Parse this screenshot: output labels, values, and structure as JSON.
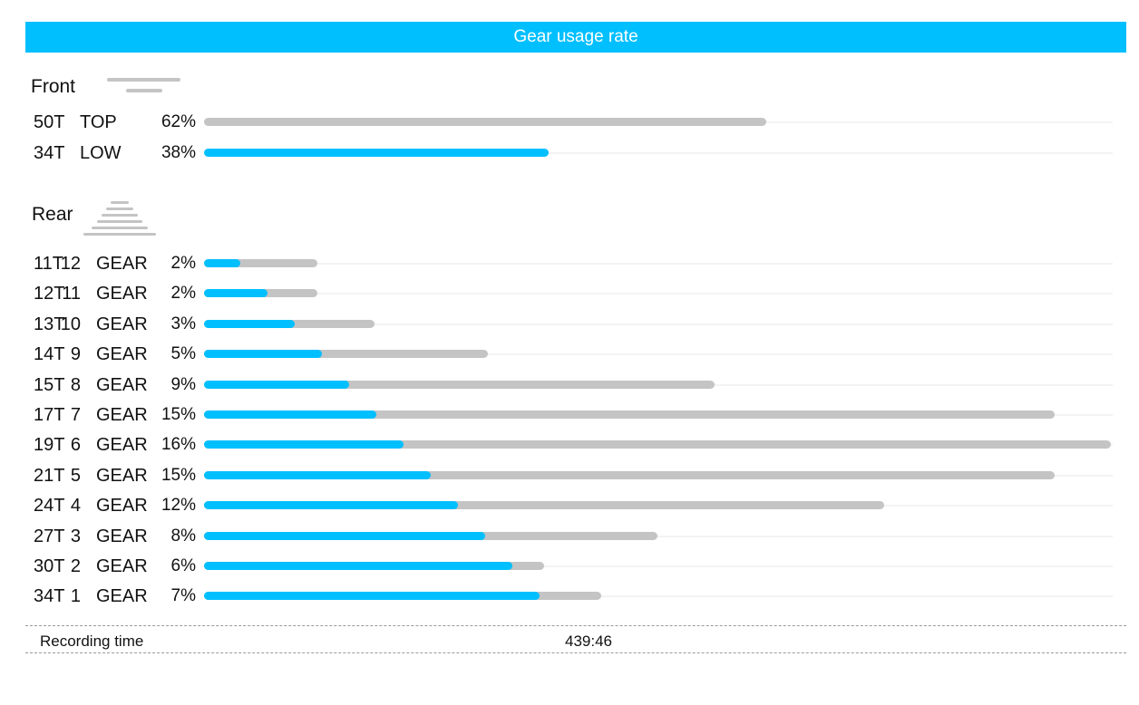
{
  "title": "Gear usage rate",
  "front": {
    "label": "Front",
    "rows": [
      {
        "teeth": "50T",
        "name": "TOP",
        "pct": "62%",
        "usage": 62,
        "bar_color": "gray"
      },
      {
        "teeth": "34T",
        "name": "LOW",
        "pct": "38%",
        "usage": 38,
        "bar_color": "blue"
      }
    ]
  },
  "rear": {
    "label": "Rear",
    "rows": [
      {
        "teeth": "11T",
        "gear": "12",
        "unit": "GEAR",
        "pct": "2%",
        "usage": 2
      },
      {
        "teeth": "12T",
        "gear": "11",
        "unit": "GEAR",
        "pct": "2%",
        "usage": 2
      },
      {
        "teeth": "13T",
        "gear": "10",
        "unit": "GEAR",
        "pct": "3%",
        "usage": 3
      },
      {
        "teeth": "14T",
        "gear": "9",
        "unit": "GEAR",
        "pct": "5%",
        "usage": 5
      },
      {
        "teeth": "15T",
        "gear": "8",
        "unit": "GEAR",
        "pct": "9%",
        "usage": 9
      },
      {
        "teeth": "17T",
        "gear": "7",
        "unit": "GEAR",
        "pct": "15%",
        "usage": 15
      },
      {
        "teeth": "19T",
        "gear": "6",
        "unit": "GEAR",
        "pct": "16%",
        "usage": 16
      },
      {
        "teeth": "21T",
        "gear": "5",
        "unit": "GEAR",
        "pct": "15%",
        "usage": 15
      },
      {
        "teeth": "24T",
        "gear": "4",
        "unit": "GEAR",
        "pct": "12%",
        "usage": 12
      },
      {
        "teeth": "27T",
        "gear": "3",
        "unit": "GEAR",
        "pct": "8%",
        "usage": 8
      },
      {
        "teeth": "30T",
        "gear": "2",
        "unit": "GEAR",
        "pct": "6%",
        "usage": 6
      },
      {
        "teeth": "34T",
        "gear": "1",
        "unit": "GEAR",
        "pct": "7%",
        "usage": 7
      }
    ]
  },
  "footer": {
    "label": "Recording time",
    "value": "439:46"
  },
  "colors": {
    "accent": "#00bfff",
    "bar_gray": "#c4c4c4",
    "header_text": "#ffffff"
  },
  "chart_data": {
    "type": "bar",
    "orientation": "horizontal",
    "title": "Gear usage rate",
    "front": {
      "categories": [
        "50T TOP",
        "34T LOW"
      ],
      "values": [
        62,
        38
      ],
      "unit": "%"
    },
    "rear": {
      "categories": [
        "11T 12GEAR",
        "12T 11GEAR",
        "13T 10GEAR",
        "14T 9GEAR",
        "15T 8GEAR",
        "17T 7GEAR",
        "19T 6GEAR",
        "21T 5GEAR",
        "24T 4GEAR",
        "27T 3GEAR",
        "30T 2GEAR",
        "34T 1GEAR"
      ],
      "values": [
        2,
        2,
        3,
        5,
        9,
        15,
        16,
        15,
        12,
        8,
        6,
        7
      ],
      "unit": "%"
    },
    "grid": false,
    "legend": "none"
  }
}
